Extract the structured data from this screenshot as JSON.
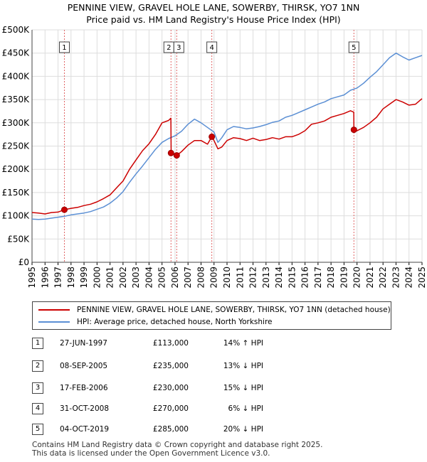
{
  "title": {
    "line1": "PENNINE VIEW, GRAVEL HOLE LANE, SOWERBY, THIRSK, YO7 1NN",
    "line2": "Price paid vs. HM Land Registry's House Price Index (HPI)"
  },
  "colors": {
    "property": "#cc0000",
    "hpi": "#5b8fd4",
    "marker": "#cc0000",
    "vline": "#e06666"
  },
  "legend": {
    "property_label": "PENNINE VIEW, GRAVEL HOLE LANE, SOWERBY, THIRSK, YO7 1NN (detached house)",
    "hpi_label": "HPI: Average price, detached house, North Yorkshire"
  },
  "sales": [
    {
      "num": "1",
      "date": "27-JUN-1997",
      "price": "£113,000",
      "hpi": "14% ↑ HPI"
    },
    {
      "num": "2",
      "date": "08-SEP-2005",
      "price": "£235,000",
      "hpi": "13% ↓ HPI"
    },
    {
      "num": "3",
      "date": "17-FEB-2006",
      "price": "£230,000",
      "hpi": "15% ↓ HPI"
    },
    {
      "num": "4",
      "date": "31-OCT-2008",
      "price": "£270,000",
      "hpi": "6% ↓ HPI"
    },
    {
      "num": "5",
      "date": "04-OCT-2019",
      "price": "£285,000",
      "hpi": "20% ↓ HPI"
    }
  ],
  "footer": {
    "line1": "Contains HM Land Registry data © Crown copyright and database right 2025.",
    "line2": "This data is licensed under the Open Government Licence v3.0."
  },
  "chart_data": {
    "type": "line",
    "title": "PENNINE VIEW, GRAVEL HOLE LANE, SOWERBY, THIRSK, YO7 1NN",
    "subtitle": "Price paid vs. HM Land Registry's House Price Index (HPI)",
    "xlabel": "",
    "ylabel": "",
    "xlim": [
      1995,
      2025
    ],
    "ylim": [
      0,
      500000
    ],
    "grid": true,
    "legend_position": "bottom",
    "x_ticks": [
      "1995",
      "1996",
      "1997",
      "1998",
      "1999",
      "2000",
      "2001",
      "2002",
      "2003",
      "2004",
      "2005",
      "2006",
      "2007",
      "2008",
      "2009",
      "2010",
      "2011",
      "2012",
      "2013",
      "2014",
      "2015",
      "2016",
      "2017",
      "2018",
      "2019",
      "2020",
      "2021",
      "2022",
      "2023",
      "2024",
      "2025"
    ],
    "y_ticks": [
      "£0",
      "£50K",
      "£100K",
      "£150K",
      "£200K",
      "£250K",
      "£300K",
      "£350K",
      "£400K",
      "£450K",
      "£500K"
    ],
    "series": [
      {
        "name": "PENNINE VIEW, GRAVEL HOLE LANE, SOWERBY, THIRSK, YO7 1NN (detached house)",
        "x": [
          1995.0,
          1995.5,
          1996.0,
          1996.5,
          1997.0,
          1997.48,
          1998.0,
          1998.5,
          1999.0,
          1999.5,
          2000.0,
          2000.5,
          2001.0,
          2001.5,
          2002.0,
          2002.5,
          2003.0,
          2003.5,
          2004.0,
          2004.5,
          2005.0,
          2005.5,
          2005.68,
          2005.7,
          2006.0,
          2006.13,
          2006.5,
          2007.0,
          2007.5,
          2008.0,
          2008.5,
          2008.83,
          2009.0,
          2009.3,
          2009.6,
          2010.0,
          2010.5,
          2011.0,
          2011.5,
          2012.0,
          2012.5,
          2013.0,
          2013.5,
          2014.0,
          2014.5,
          2015.0,
          2015.5,
          2016.0,
          2016.5,
          2017.0,
          2017.5,
          2018.0,
          2018.5,
          2019.0,
          2019.5,
          2019.75,
          2019.76,
          2020.0,
          2020.5,
          2021.0,
          2021.5,
          2022.0,
          2022.5,
          2023.0,
          2023.5,
          2024.0,
          2024.5,
          2025.0
        ],
        "y": [
          107000,
          106000,
          104000,
          107000,
          108000,
          113000,
          116000,
          118000,
          122000,
          125000,
          130000,
          137000,
          145000,
          160000,
          175000,
          200000,
          220000,
          240000,
          255000,
          275000,
          300000,
          305000,
          310000,
          235000,
          232000,
          230000,
          238000,
          252000,
          262000,
          262000,
          254000,
          270000,
          262000,
          244000,
          248000,
          262000,
          268000,
          266000,
          262000,
          267000,
          262000,
          264000,
          268000,
          265000,
          270000,
          270000,
          275000,
          283000,
          297000,
          300000,
          304000,
          312000,
          316000,
          320000,
          326000,
          323000,
          285000,
          283000,
          290000,
          300000,
          312000,
          330000,
          340000,
          350000,
          345000,
          338000,
          340000,
          352000
        ]
      },
      {
        "name": "HPI: Average price, detached house, North Yorkshire",
        "x": [
          1995.0,
          1995.5,
          1996.0,
          1996.5,
          1997.0,
          1997.5,
          1998.0,
          1998.5,
          1999.0,
          1999.5,
          2000.0,
          2000.5,
          2001.0,
          2001.5,
          2002.0,
          2002.5,
          2003.0,
          2003.5,
          2004.0,
          2004.5,
          2005.0,
          2005.5,
          2006.0,
          2006.5,
          2007.0,
          2007.5,
          2008.0,
          2008.5,
          2009.0,
          2009.3,
          2009.6,
          2010.0,
          2010.5,
          2011.0,
          2011.5,
          2012.0,
          2012.5,
          2013.0,
          2013.5,
          2014.0,
          2014.5,
          2015.0,
          2015.5,
          2016.0,
          2016.5,
          2017.0,
          2017.5,
          2018.0,
          2018.5,
          2019.0,
          2019.5,
          2020.0,
          2020.5,
          2021.0,
          2021.5,
          2022.0,
          2022.5,
          2023.0,
          2023.5,
          2024.0,
          2024.5,
          2025.0
        ],
        "y": [
          93000,
          92000,
          93000,
          95000,
          97000,
          99000,
          102000,
          104000,
          106000,
          109000,
          114000,
          119000,
          127000,
          138000,
          152000,
          172000,
          190000,
          207000,
          225000,
          243000,
          258000,
          266000,
          272000,
          282000,
          297000,
          308000,
          300000,
          290000,
          280000,
          258000,
          268000,
          285000,
          292000,
          290000,
          287000,
          289000,
          292000,
          296000,
          301000,
          304000,
          312000,
          316000,
          322000,
          328000,
          334000,
          340000,
          345000,
          352000,
          356000,
          360000,
          370000,
          375000,
          385000,
          398000,
          410000,
          425000,
          440000,
          450000,
          442000,
          435000,
          440000,
          445000
        ]
      }
    ],
    "sale_markers": [
      {
        "label": "1",
        "x": 1997.49,
        "y": 113000
      },
      {
        "label": "2",
        "x": 2005.69,
        "y": 235000
      },
      {
        "label": "3",
        "x": 2006.13,
        "y": 230000
      },
      {
        "label": "4",
        "x": 2008.83,
        "y": 270000
      },
      {
        "label": "5",
        "x": 2019.76,
        "y": 285000
      }
    ]
  }
}
